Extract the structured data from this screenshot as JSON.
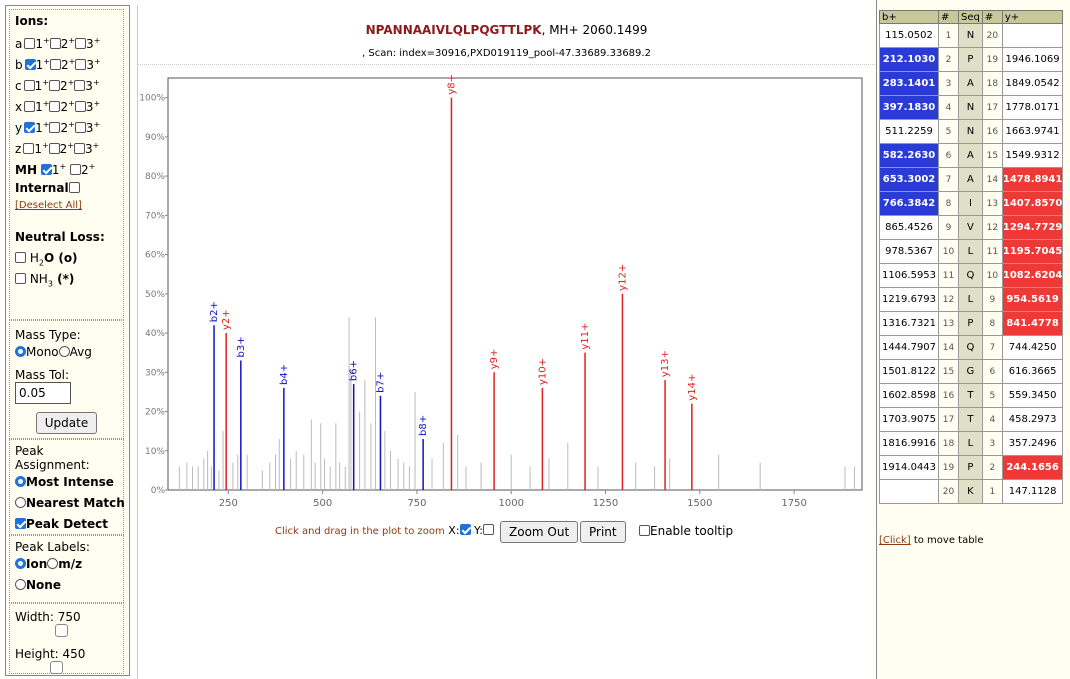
{
  "ions_panel": {
    "title": "Ions:",
    "rows": [
      {
        "ion": "a",
        "charges": [
          "1",
          "2",
          "3"
        ],
        "checked": [
          false,
          false,
          false
        ]
      },
      {
        "ion": "b",
        "charges": [
          "1",
          "2",
          "3"
        ],
        "checked": [
          true,
          false,
          false
        ]
      },
      {
        "ion": "c",
        "charges": [
          "1",
          "2",
          "3"
        ],
        "checked": [
          false,
          false,
          false
        ]
      },
      {
        "ion": "x",
        "charges": [
          "1",
          "2",
          "3"
        ],
        "checked": [
          false,
          false,
          false
        ]
      },
      {
        "ion": "y",
        "charges": [
          "1",
          "2",
          "3"
        ],
        "checked": [
          true,
          false,
          false
        ]
      },
      {
        "ion": "z",
        "charges": [
          "1",
          "2",
          "3"
        ],
        "checked": [
          false,
          false,
          false
        ]
      }
    ],
    "charge_suffix": "+",
    "mh": {
      "label": "MH",
      "charges": [
        "1",
        "2"
      ],
      "checked": [
        true,
        false
      ]
    },
    "internal_label": "Internal",
    "deselect_all": "[Deselect All]",
    "neutral_loss_title": "Neutral Loss:",
    "h2o": {
      "pre": "H",
      "sub": "2",
      "post": "O (o)"
    },
    "nh3": {
      "pre": "NH",
      "sub": "3",
      "post": " (*)"
    }
  },
  "mass_panel": {
    "mass_type_label": "Mass Type:",
    "mono_label": "Mono",
    "avg_label": "Avg",
    "mass_tol_label": "Mass Tol:",
    "mass_tol_value": "0.05",
    "update_button": "Update"
  },
  "peak_panel": {
    "assignment_label": "Peak Assignment:",
    "most_intense": "Most Intense",
    "nearest_match": "Nearest Match",
    "peak_detect": "Peak Detect",
    "labels_title": "Peak Labels:",
    "ion_label": "Ion",
    "mz_label": "m/z",
    "none_label": "None",
    "width_label": "Width: 750",
    "height_label": "Height: 450"
  },
  "header": {
    "sequence": "NPANNAAIVLQLPQGTTLPK",
    "mh_text": ", MH+ 2060.1499",
    "scan_text": ", Scan: index=30916,PXD019119_pool-47.33689.33689.2"
  },
  "chart_data": {
    "type": "bar",
    "xlim": [
      90,
      1930
    ],
    "ylim": [
      0,
      105
    ],
    "x_ticks": [
      250,
      500,
      750,
      1000,
      1250,
      1500,
      1750
    ],
    "y_ticks": [
      {
        "v": 0,
        "label": "0%"
      },
      {
        "v": 10,
        "label": "10%"
      },
      {
        "v": 20,
        "label": "20%"
      },
      {
        "v": 30,
        "label": "30%"
      },
      {
        "v": 40,
        "label": "40%"
      },
      {
        "v": 50,
        "label": "50%"
      },
      {
        "v": 60,
        "label": "60%"
      },
      {
        "v": 70,
        "label": "70%"
      },
      {
        "v": 80,
        "label": "80%"
      },
      {
        "v": 90,
        "label": "90%"
      },
      {
        "v": 100,
        "label": "100%"
      }
    ],
    "b_color": "#1010c8",
    "y_color": "#e02020",
    "grey_color": "#bbbbbb",
    "annotated_peaks": [
      {
        "label": "b2+",
        "mz": 212.1,
        "intensity": 42,
        "type": "b"
      },
      {
        "label": "y2+",
        "mz": 244.2,
        "intensity": 40,
        "type": "y"
      },
      {
        "label": "b3+",
        "mz": 283.1,
        "intensity": 33,
        "type": "b"
      },
      {
        "label": "b4+",
        "mz": 397.2,
        "intensity": 26,
        "type": "b"
      },
      {
        "label": "b6+",
        "mz": 582.3,
        "intensity": 27,
        "type": "b"
      },
      {
        "label": "b7+",
        "mz": 653.3,
        "intensity": 24,
        "type": "b"
      },
      {
        "label": "b8+",
        "mz": 766.4,
        "intensity": 13,
        "type": "b"
      },
      {
        "label": "y8+",
        "mz": 841.5,
        "intensity": 100,
        "type": "y"
      },
      {
        "label": "y9+",
        "mz": 954.6,
        "intensity": 30,
        "type": "y"
      },
      {
        "label": "y10+",
        "mz": 1082.6,
        "intensity": 26,
        "type": "y"
      },
      {
        "label": "y11+",
        "mz": 1195.7,
        "intensity": 35,
        "type": "y"
      },
      {
        "label": "y12+",
        "mz": 1294.8,
        "intensity": 50,
        "type": "y"
      },
      {
        "label": "y13+",
        "mz": 1407.9,
        "intensity": 28,
        "type": "y"
      },
      {
        "label": "y14+",
        "mz": 1478.9,
        "intensity": 22,
        "type": "y"
      }
    ],
    "unannotated_peaks": [
      [
        120,
        6
      ],
      [
        140,
        7
      ],
      [
        155,
        6
      ],
      [
        170,
        6
      ],
      [
        185,
        8
      ],
      [
        195,
        10
      ],
      [
        205,
        6
      ],
      [
        225,
        5
      ],
      [
        236,
        15
      ],
      [
        262,
        7
      ],
      [
        275,
        9
      ],
      [
        300,
        9
      ],
      [
        340,
        5
      ],
      [
        360,
        7
      ],
      [
        375,
        9
      ],
      [
        385,
        13
      ],
      [
        415,
        8
      ],
      [
        430,
        10
      ],
      [
        450,
        9
      ],
      [
        470,
        18
      ],
      [
        480,
        7
      ],
      [
        495,
        17
      ],
      [
        505,
        8
      ],
      [
        520,
        6
      ],
      [
        535,
        17
      ],
      [
        545,
        7
      ],
      [
        560,
        6
      ],
      [
        570,
        44
      ],
      [
        575,
        31
      ],
      [
        598,
        20
      ],
      [
        612,
        28
      ],
      [
        628,
        17
      ],
      [
        640,
        44
      ],
      [
        665,
        15
      ],
      [
        680,
        10
      ],
      [
        700,
        8
      ],
      [
        715,
        7
      ],
      [
        730,
        6
      ],
      [
        745,
        25
      ],
      [
        790,
        8
      ],
      [
        820,
        12
      ],
      [
        858,
        14
      ],
      [
        880,
        6
      ],
      [
        920,
        7
      ],
      [
        1000,
        9
      ],
      [
        1050,
        6
      ],
      [
        1100,
        8
      ],
      [
        1150,
        12
      ],
      [
        1230,
        6
      ],
      [
        1330,
        7
      ],
      [
        1380,
        6
      ],
      [
        1420,
        8
      ],
      [
        1550,
        9
      ],
      [
        1660,
        7
      ],
      [
        1885,
        6
      ],
      [
        1910,
        6
      ]
    ]
  },
  "controls": {
    "hint": "Click and drag in the plot to zoom",
    "x_label": "X:",
    "y_label": "Y:",
    "zoom_out": "Zoom Out",
    "print": "Print",
    "tooltip_label": "Enable tooltip"
  },
  "table": {
    "headers": [
      "b+",
      "#",
      "Seq",
      "#",
      "y+"
    ],
    "rows": [
      {
        "b": "115.0502",
        "i": "1",
        "aa": "N",
        "j": "20",
        "y": "",
        "bh": false,
        "yh": false
      },
      {
        "b": "212.1030",
        "i": "2",
        "aa": "P",
        "j": "19",
        "y": "1946.1069",
        "bh": true,
        "yh": false
      },
      {
        "b": "283.1401",
        "i": "3",
        "aa": "A",
        "j": "18",
        "y": "1849.0542",
        "bh": true,
        "yh": false
      },
      {
        "b": "397.1830",
        "i": "4",
        "aa": "N",
        "j": "17",
        "y": "1778.0171",
        "bh": true,
        "yh": false
      },
      {
        "b": "511.2259",
        "i": "5",
        "aa": "N",
        "j": "16",
        "y": "1663.9741",
        "bh": false,
        "yh": false
      },
      {
        "b": "582.2630",
        "i": "6",
        "aa": "A",
        "j": "15",
        "y": "1549.9312",
        "bh": true,
        "yh": false
      },
      {
        "b": "653.3002",
        "i": "7",
        "aa": "A",
        "j": "14",
        "y": "1478.8941",
        "bh": true,
        "yh": true
      },
      {
        "b": "766.3842",
        "i": "8",
        "aa": "I",
        "j": "13",
        "y": "1407.8570",
        "bh": true,
        "yh": true
      },
      {
        "b": "865.4526",
        "i": "9",
        "aa": "V",
        "j": "12",
        "y": "1294.7729",
        "bh": false,
        "yh": true
      },
      {
        "b": "978.5367",
        "i": "10",
        "aa": "L",
        "j": "11",
        "y": "1195.7045",
        "bh": false,
        "yh": true
      },
      {
        "b": "1106.5953",
        "i": "11",
        "aa": "Q",
        "j": "10",
        "y": "1082.6204",
        "bh": false,
        "yh": true
      },
      {
        "b": "1219.6793",
        "i": "12",
        "aa": "L",
        "j": "9",
        "y": "954.5619",
        "bh": false,
        "yh": true
      },
      {
        "b": "1316.7321",
        "i": "13",
        "aa": "P",
        "j": "8",
        "y": "841.4778",
        "bh": false,
        "yh": true
      },
      {
        "b": "1444.7907",
        "i": "14",
        "aa": "Q",
        "j": "7",
        "y": "744.4250",
        "bh": false,
        "yh": false
      },
      {
        "b": "1501.8122",
        "i": "15",
        "aa": "G",
        "j": "6",
        "y": "616.3665",
        "bh": false,
        "yh": false
      },
      {
        "b": "1602.8598",
        "i": "16",
        "aa": "T",
        "j": "5",
        "y": "559.3450",
        "bh": false,
        "yh": false
      },
      {
        "b": "1703.9075",
        "i": "17",
        "aa": "T",
        "j": "4",
        "y": "458.2973",
        "bh": false,
        "yh": false
      },
      {
        "b": "1816.9916",
        "i": "18",
        "aa": "L",
        "j": "3",
        "y": "357.2496",
        "bh": false,
        "yh": false
      },
      {
        "b": "1914.0443",
        "i": "19",
        "aa": "P",
        "j": "2",
        "y": "244.1656",
        "bh": false,
        "yh": true
      },
      {
        "b": "",
        "i": "20",
        "aa": "K",
        "j": "1",
        "y": "147.1128",
        "bh": false,
        "yh": false
      }
    ],
    "click_link": "[Click]",
    "click_text": " to move table"
  }
}
